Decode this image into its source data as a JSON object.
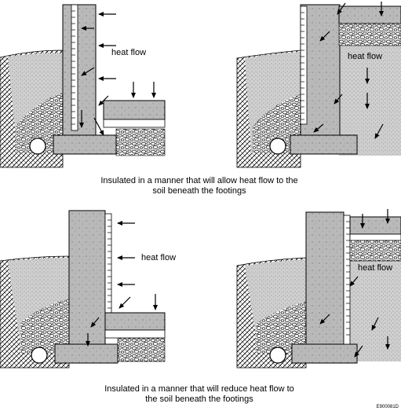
{
  "panels": [
    {
      "id": "top-left",
      "label": "heat flow"
    },
    {
      "id": "top-right",
      "label": "heat flow"
    },
    {
      "id": "bottom-left",
      "label": "heat flow"
    },
    {
      "id": "bottom-right",
      "label": "heat flow"
    }
  ],
  "captions": {
    "top_line1": "Insulated in a manner that will allow heat flow to the",
    "top_line2": "soil beneath the footings",
    "bottom_line1": "Insulated in a manner that will reduce heat flow to",
    "bottom_line2": "the soil beneath the footings"
  },
  "figure_code": "E900081D"
}
